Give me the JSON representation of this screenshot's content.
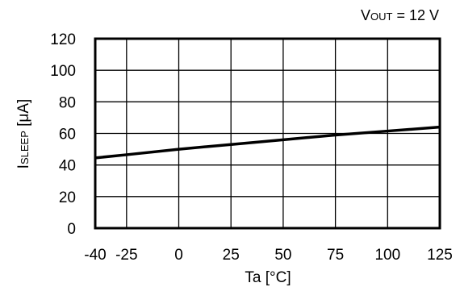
{
  "chart_data": {
    "type": "line",
    "annotation": {
      "main": "V",
      "sub": "OUT",
      "rest": " = 12 V"
    },
    "xlabel": "Ta [°C]",
    "ylabel": {
      "main": "I",
      "sub": "SLEEP",
      "rest": " [μA]"
    },
    "xlim": [
      -40,
      125
    ],
    "ylim": [
      0,
      120
    ],
    "xticks": [
      -40,
      -25,
      0,
      25,
      50,
      75,
      100,
      125
    ],
    "xtick_labels": [
      "-40",
      "-25",
      "0",
      "25",
      "50",
      "75",
      "100",
      "125"
    ],
    "yticks": [
      0,
      20,
      40,
      60,
      80,
      100,
      120
    ],
    "ytick_labels": [
      "0",
      "20",
      "40",
      "60",
      "80",
      "100",
      "120"
    ],
    "grid": true,
    "series": [
      {
        "x": [
          -40,
          -25,
          0,
          25,
          50,
          75,
          100,
          125
        ],
        "y": [
          44.5,
          46.5,
          50,
          53,
          56,
          59,
          61.5,
          64
        ]
      }
    ],
    "colors": {
      "line": "#000000",
      "grid": "#000000",
      "background": "#ffffff"
    }
  }
}
